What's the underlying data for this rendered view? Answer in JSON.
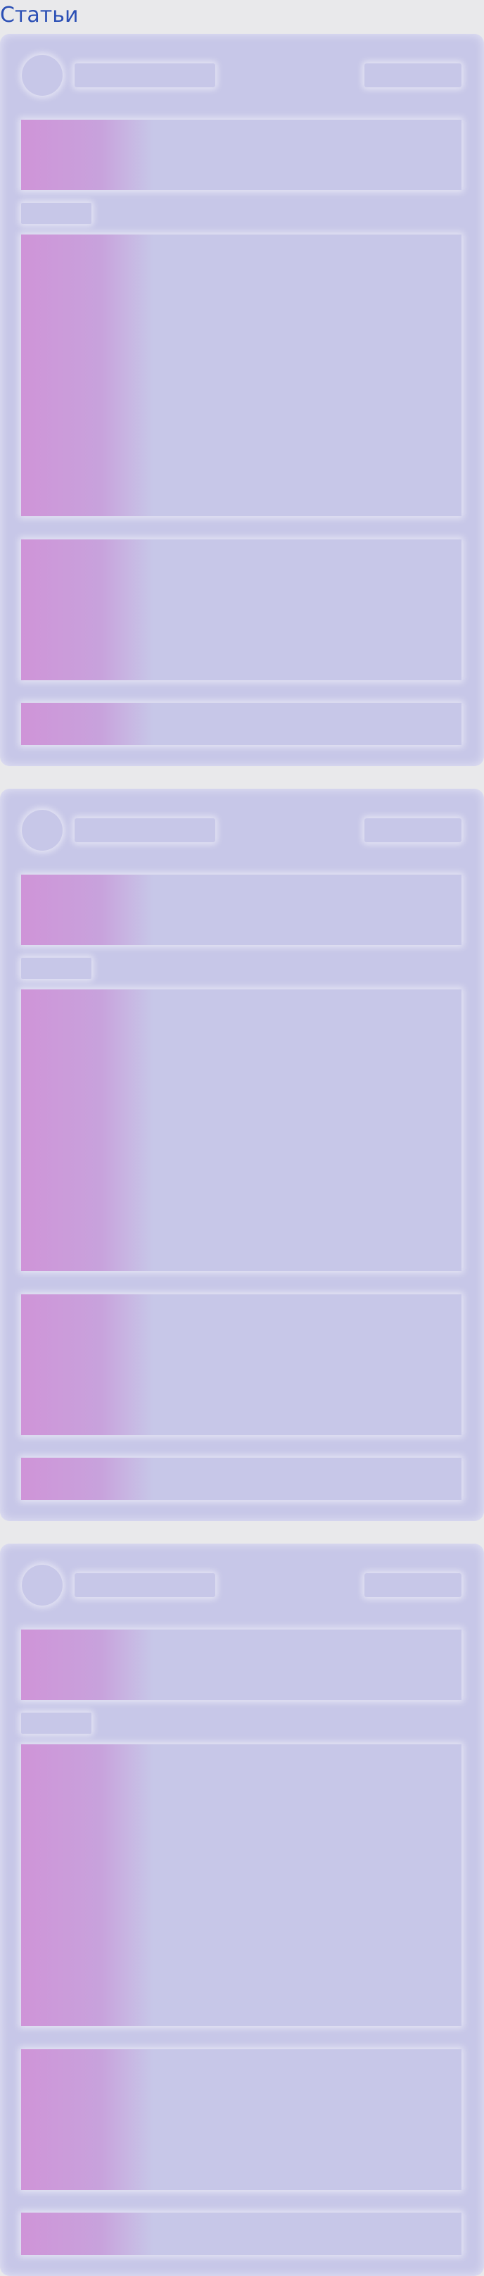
{
  "header": {
    "title": "Статьи"
  },
  "article_cards": [
    {
      "state": "loading",
      "skeleton": [
        "avatar",
        "author-name",
        "post-meta",
        "title",
        "tag",
        "image",
        "text",
        "footer"
      ]
    },
    {
      "state": "loading",
      "skeleton": [
        "avatar",
        "author-name",
        "post-meta",
        "title",
        "tag",
        "image",
        "text",
        "footer"
      ]
    },
    {
      "state": "loading",
      "skeleton": [
        "avatar",
        "author-name",
        "post-meta",
        "title",
        "tag",
        "image",
        "text",
        "footer"
      ]
    }
  ],
  "colors": {
    "background": "#e9e9eb",
    "card": "#c7c7e8",
    "shimmer_accent": "#cf94d8",
    "title": "#2b4fb5"
  }
}
